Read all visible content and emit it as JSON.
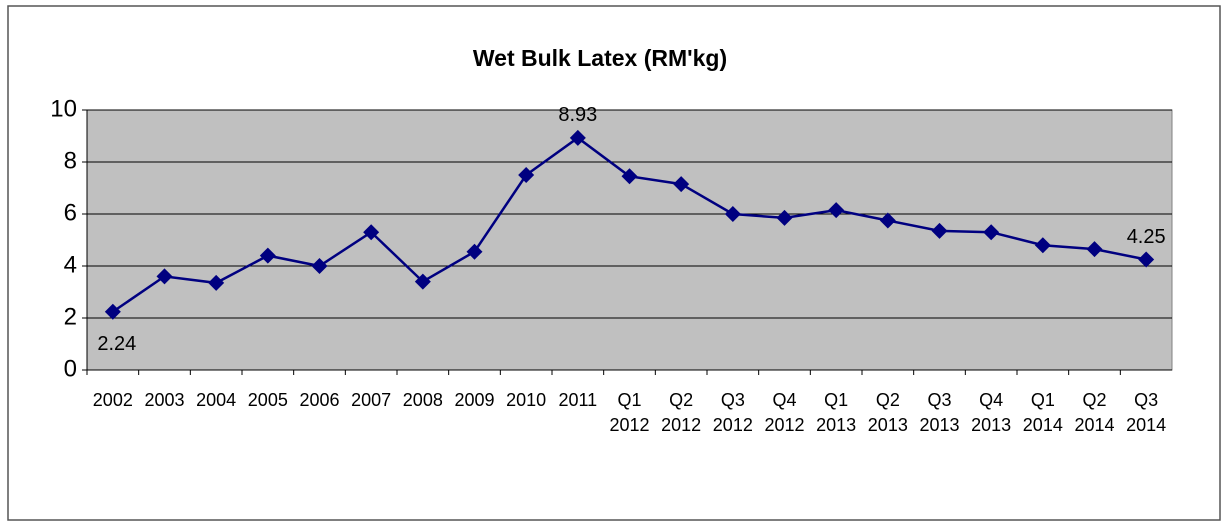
{
  "chart_data": {
    "type": "line",
    "title": "Wet Bulk Latex (RM'kg)",
    "categories": [
      "2002",
      "2003",
      "2004",
      "2005",
      "2006",
      "2007",
      "2008",
      "2009",
      "2010",
      "2011",
      "Q1 2012",
      "Q2 2012",
      "Q3 2012",
      "Q4 2012",
      "Q1 2013",
      "Q2 2013",
      "Q3 2013",
      "Q4 2013",
      "Q1 2014",
      "Q2 2014",
      "Q3 2014"
    ],
    "series": [
      {
        "name": "Wet Bulk Latex",
        "color": "#000080",
        "values": [
          2.24,
          3.6,
          3.35,
          4.4,
          4.0,
          5.3,
          3.4,
          4.55,
          7.5,
          8.93,
          7.45,
          7.15,
          6.0,
          5.85,
          6.15,
          5.75,
          5.35,
          5.3,
          4.8,
          4.65,
          4.25
        ],
        "value_labels": [
          "2.24",
          null,
          null,
          null,
          null,
          null,
          null,
          null,
          null,
          "8.93",
          null,
          null,
          null,
          null,
          null,
          null,
          null,
          null,
          null,
          null,
          "4.25"
        ]
      }
    ],
    "ylim": [
      0,
      10
    ],
    "yticks": [
      0,
      2,
      4,
      6,
      8,
      10
    ],
    "grid": true,
    "plot_background": "#c0c0c0"
  }
}
